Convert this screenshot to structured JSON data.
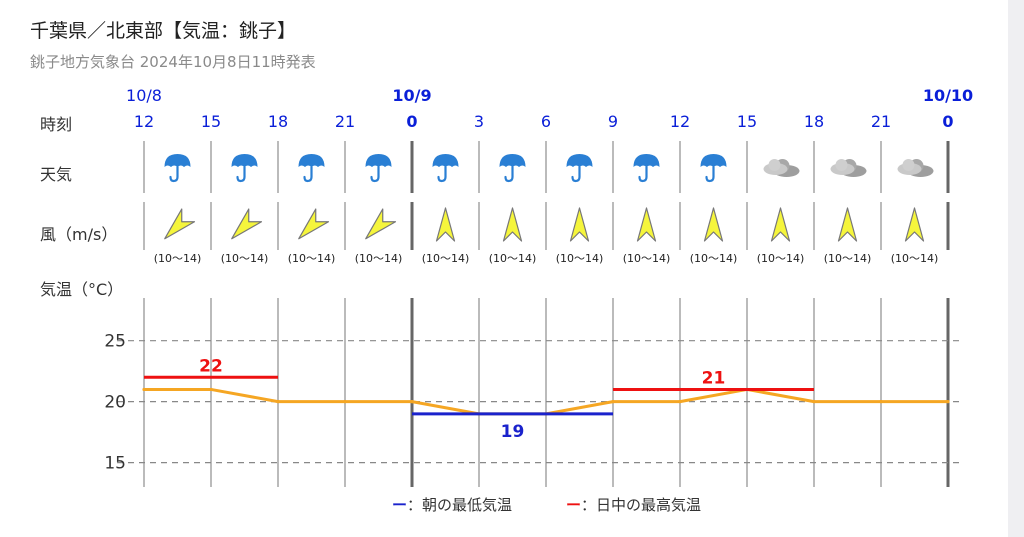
{
  "header": {
    "title": "千葉県／北東部【気温：銚子】",
    "subtitle": "銚子地方気象台 2024年10月8日11時発表"
  },
  "row_labels": {
    "time": "時刻",
    "weather": "天気",
    "wind": "風（m/s）",
    "temp": "気温（°C）"
  },
  "colors": {
    "accent_blue": "#0a1fd8",
    "temp_line": "#f5a623",
    "max_line": "#ee1111",
    "min_line": "#1a22cc",
    "wind_arrow": "#f5f53c"
  },
  "chart_data": {
    "type": "line",
    "date_labels": [
      {
        "col": 0,
        "text": "10/8",
        "bold": false
      },
      {
        "col": 4,
        "text": "10/9",
        "bold": true
      },
      {
        "col": 12,
        "text": "10/10",
        "bold": true
      }
    ],
    "x": [
      "12",
      "15",
      "18",
      "21",
      "0",
      "3",
      "6",
      "9",
      "12",
      "15",
      "18",
      "21",
      "0"
    ],
    "weather": [
      "rain-umbrella-icon",
      "rain-umbrella-icon",
      "rain-umbrella-icon",
      "rain-umbrella-icon",
      "rain-umbrella-icon",
      "rain-umbrella-icon",
      "rain-umbrella-icon",
      "rain-umbrella-icon",
      "rain-umbrella-icon",
      "cloud-icon",
      "cloud-icon",
      "cloud-icon"
    ],
    "wind_direction": [
      "SW",
      "SW",
      "SW",
      "SW",
      "N",
      "N",
      "N",
      "N",
      "N",
      "N",
      "N",
      "N"
    ],
    "wind_speed": [
      "(10〜14)",
      "(10〜14)",
      "(10〜14)",
      "(10〜14)",
      "(10〜14)",
      "(10〜14)",
      "(10〜14)",
      "(10〜14)",
      "(10〜14)",
      "(10〜14)",
      "(10〜14)",
      "(10〜14)"
    ],
    "series": [
      {
        "values": [
          21,
          21,
          20,
          20,
          20,
          19,
          19,
          20,
          20,
          21,
          20,
          20,
          20
        ]
      }
    ],
    "extremes": [
      {
        "kind": "max",
        "value": 22,
        "from": 0,
        "to": 2
      },
      {
        "kind": "min",
        "value": 19,
        "from": 4,
        "to": 7
      },
      {
        "kind": "max",
        "value": 21,
        "from": 7,
        "to": 10
      }
    ],
    "yticks": [
      25,
      20,
      15
    ],
    "ylim": [
      13,
      28.5
    ],
    "grid": true
  },
  "legend": {
    "min": {
      "dash": "ー",
      "text": "：朝の最低気温"
    },
    "max": {
      "dash": "ー",
      "text": "：日中の最高気温"
    }
  }
}
